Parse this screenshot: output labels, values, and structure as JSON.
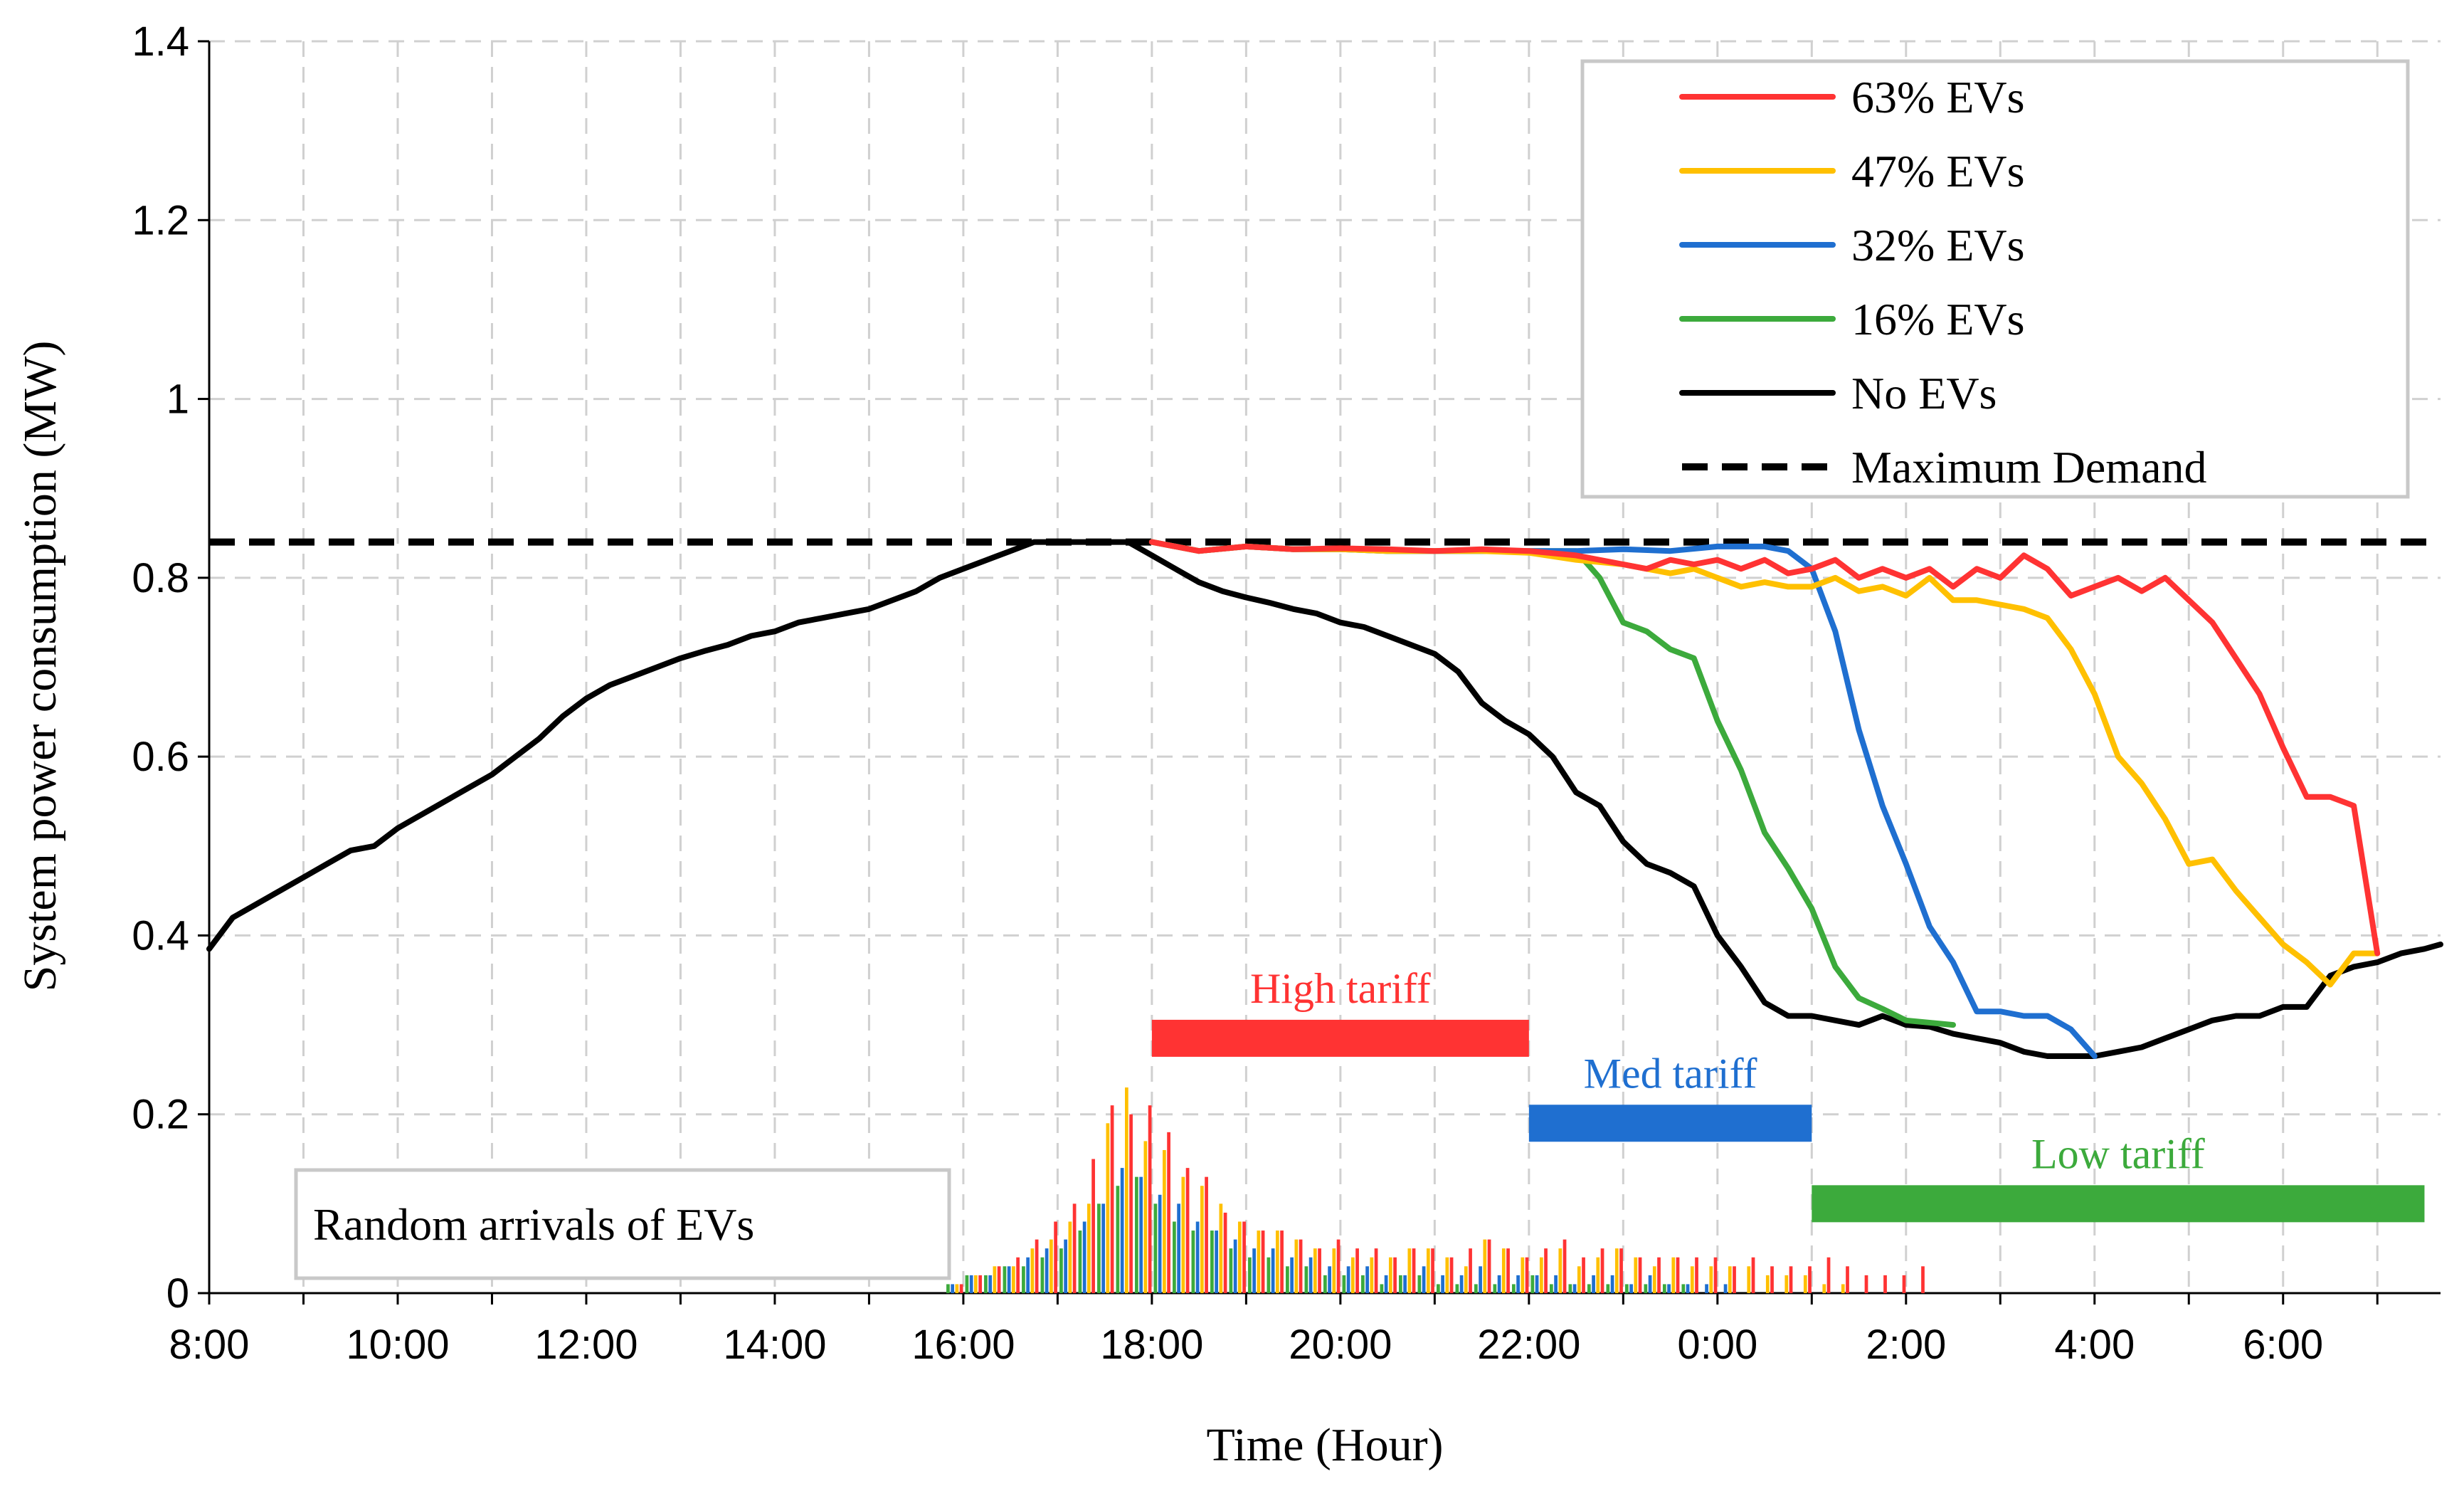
{
  "chart_data": {
    "type": "line",
    "title": "",
    "xlabel": "Time (Hour)",
    "ylabel": "System power consumption  (MW)",
    "xlim": [
      8,
      31.67
    ],
    "ylim": [
      0,
      1.4
    ],
    "x_ticks": [
      8,
      10,
      12,
      14,
      16,
      18,
      20,
      22,
      24,
      26,
      28,
      30
    ],
    "x_tick_labels": [
      "8:00",
      "10:00",
      "12:00",
      "14:00",
      "16:00",
      "18:00",
      "20:00",
      "22:00",
      "0:00",
      "2:00",
      "4:00",
      "6:00"
    ],
    "y_ticks": [
      0,
      0.2,
      0.4,
      0.6,
      0.8,
      1,
      1.2,
      1.4
    ],
    "y_tick_labels": [
      "0",
      "0.2",
      "0.4",
      "0.6",
      "0.8",
      "1",
      "1.2",
      "1.4"
    ],
    "grid": true,
    "legend_position": "top-right",
    "series": [
      {
        "name": "63% EVs",
        "color": "#ff3333",
        "x": [
          18,
          18.5,
          19,
          19.5,
          20,
          20.5,
          21,
          21.5,
          22,
          22.5,
          23,
          23.25,
          23.5,
          23.75,
          24,
          24.25,
          24.5,
          24.75,
          25,
          25.25,
          25.5,
          25.75,
          26,
          26.25,
          26.5,
          26.75,
          27,
          27.25,
          27.5,
          27.75,
          28,
          28.25,
          28.5,
          28.75,
          29,
          29.25,
          29.5,
          29.75,
          30,
          30.25,
          30.5,
          30.75,
          31
        ],
        "values": [
          0.84,
          0.83,
          0.835,
          0.832,
          0.833,
          0.832,
          0.83,
          0.832,
          0.83,
          0.825,
          0.815,
          0.81,
          0.82,
          0.815,
          0.82,
          0.81,
          0.82,
          0.805,
          0.81,
          0.82,
          0.8,
          0.81,
          0.8,
          0.81,
          0.79,
          0.81,
          0.8,
          0.825,
          0.81,
          0.78,
          0.79,
          0.8,
          0.785,
          0.8,
          0.775,
          0.75,
          0.71,
          0.67,
          0.61,
          0.555,
          0.555,
          0.545,
          0.38
        ]
      },
      {
        "name": "47% EVs",
        "color": "#ffc000",
        "x": [
          18,
          18.5,
          19,
          19.5,
          20,
          20.5,
          21,
          21.5,
          22,
          22.5,
          23,
          23.5,
          23.75,
          24,
          24.25,
          24.5,
          24.75,
          25,
          25.25,
          25.5,
          25.75,
          26,
          26.25,
          26.5,
          26.75,
          27,
          27.25,
          27.5,
          27.75,
          28,
          28.25,
          28.5,
          28.75,
          29,
          29.25,
          29.5,
          29.75,
          30,
          30.25,
          30.5,
          30.75,
          31
        ],
        "values": [
          0.84,
          0.83,
          0.835,
          0.832,
          0.832,
          0.83,
          0.83,
          0.83,
          0.828,
          0.82,
          0.815,
          0.805,
          0.81,
          0.8,
          0.79,
          0.795,
          0.79,
          0.79,
          0.8,
          0.785,
          0.79,
          0.78,
          0.8,
          0.775,
          0.775,
          0.77,
          0.765,
          0.755,
          0.72,
          0.67,
          0.6,
          0.57,
          0.53,
          0.48,
          0.485,
          0.45,
          0.42,
          0.39,
          0.37,
          0.345,
          0.38,
          0.38
        ]
      },
      {
        "name": "32% EVs",
        "color": "#1f6fd0",
        "x": [
          18,
          18.5,
          19,
          19.5,
          20,
          20.5,
          21,
          21.5,
          22,
          22.5,
          23,
          23.5,
          24,
          24.5,
          24.75,
          25,
          25.25,
          25.5,
          25.75,
          26,
          26.25,
          26.5,
          26.75,
          27,
          27.25,
          27.5,
          27.75,
          28
        ],
        "values": [
          0.84,
          0.83,
          0.835,
          0.832,
          0.832,
          0.83,
          0.83,
          0.83,
          0.83,
          0.83,
          0.832,
          0.83,
          0.835,
          0.835,
          0.83,
          0.81,
          0.74,
          0.63,
          0.545,
          0.48,
          0.41,
          0.37,
          0.315,
          0.315,
          0.31,
          0.31,
          0.295,
          0.265
        ]
      },
      {
        "name": "16% EVs",
        "color": "#3caa3c",
        "x": [
          18,
          18.5,
          19,
          19.5,
          20,
          20.5,
          21,
          21.5,
          22,
          22.5,
          22.75,
          23,
          23.25,
          23.5,
          23.75,
          24,
          24.25,
          24.5,
          24.75,
          25,
          25.25,
          25.5,
          25.75,
          26,
          26.5
        ],
        "values": [
          0.84,
          0.83,
          0.835,
          0.832,
          0.832,
          0.83,
          0.83,
          0.83,
          0.83,
          0.83,
          0.8,
          0.75,
          0.74,
          0.72,
          0.71,
          0.64,
          0.585,
          0.515,
          0.475,
          0.43,
          0.365,
          0.33,
          0.318,
          0.305,
          0.3
        ]
      },
      {
        "name": "No EVs",
        "color": "#000000",
        "x": [
          8,
          8.25,
          8.5,
          8.75,
          9,
          9.25,
          9.5,
          9.75,
          10,
          10.25,
          10.5,
          10.75,
          11,
          11.25,
          11.5,
          11.75,
          12,
          12.25,
          12.5,
          12.75,
          13,
          13.25,
          13.5,
          13.75,
          14,
          14.25,
          14.5,
          14.75,
          15,
          15.25,
          15.5,
          15.75,
          16,
          16.25,
          16.5,
          16.75,
          17,
          17.25,
          17.5,
          17.75,
          18,
          18.25,
          18.5,
          18.75,
          19,
          19.25,
          19.5,
          19.75,
          20,
          20.25,
          20.5,
          20.75,
          21,
          21.25,
          21.5,
          21.75,
          22,
          22.25,
          22.5,
          22.75,
          23,
          23.25,
          23.5,
          23.75,
          24,
          24.25,
          24.5,
          24.75,
          25,
          25.25,
          25.5,
          25.75,
          26,
          26.25,
          26.5,
          26.75,
          27,
          27.25,
          27.5,
          27.75,
          28,
          28.25,
          28.5,
          28.75,
          29,
          29.25,
          29.5,
          29.75,
          30,
          30.25,
          30.5,
          30.75,
          31,
          31.25,
          31.5,
          31.67
        ],
        "values": [
          0.385,
          0.42,
          0.435,
          0.45,
          0.465,
          0.48,
          0.495,
          0.5,
          0.52,
          0.535,
          0.55,
          0.565,
          0.58,
          0.6,
          0.62,
          0.645,
          0.665,
          0.68,
          0.69,
          0.7,
          0.71,
          0.718,
          0.725,
          0.735,
          0.74,
          0.75,
          0.755,
          0.76,
          0.765,
          0.775,
          0.785,
          0.8,
          0.81,
          0.82,
          0.83,
          0.84,
          0.84,
          0.84,
          0.84,
          0.84,
          0.825,
          0.81,
          0.795,
          0.785,
          0.778,
          0.772,
          0.765,
          0.76,
          0.75,
          0.745,
          0.735,
          0.725,
          0.715,
          0.695,
          0.66,
          0.64,
          0.625,
          0.6,
          0.56,
          0.545,
          0.505,
          0.48,
          0.47,
          0.455,
          0.4,
          0.365,
          0.325,
          0.31,
          0.31,
          0.305,
          0.3,
          0.31,
          0.3,
          0.298,
          0.29,
          0.285,
          0.28,
          0.27,
          0.265,
          0.265,
          0.265,
          0.27,
          0.275,
          0.285,
          0.295,
          0.305,
          0.31,
          0.31,
          0.32,
          0.32,
          0.355,
          0.365,
          0.37,
          0.38,
          0.385,
          0.39
        ]
      },
      {
        "name": "Maximum Demand",
        "color": "#000000",
        "style": "dashed",
        "x": [
          8,
          31.67
        ],
        "values": [
          0.84,
          0.84
        ]
      }
    ],
    "tariffs": [
      {
        "label": "High tariff",
        "start": 18,
        "end": 22,
        "level": 0.285,
        "color": "#ff3333"
      },
      {
        "label": "Med tariff",
        "start": 22,
        "end": 25,
        "level": 0.19,
        "color": "#1f6fd0"
      },
      {
        "label": "Low tariff",
        "start": 25,
        "end": 31.5,
        "level": 0.1,
        "color": "#3caa3c"
      }
    ],
    "arrivals": {
      "label": "Random arrivals of EVs",
      "colors": [
        "#3caa3c",
        "#1f6fd0",
        "#ffc000",
        "#ff3333"
      ],
      "times": [
        15.9,
        16.1,
        16.3,
        16.5,
        16.7,
        16.9,
        17.1,
        17.3,
        17.5,
        17.7,
        17.9,
        18.1,
        18.3,
        18.5,
        18.7,
        18.9,
        19.1,
        19.3,
        19.5,
        19.7,
        19.9,
        20.1,
        20.3,
        20.5,
        20.7,
        20.9,
        21.1,
        21.3,
        21.5,
        21.7,
        21.9,
        22.1,
        22.3,
        22.5,
        22.7,
        22.9,
        23.1,
        23.3,
        23.5,
        23.7,
        23.9,
        24.1,
        24.3,
        24.5,
        24.7,
        24.9,
        25.1,
        25.3,
        25.5,
        25.7,
        25.9,
        26.1
      ],
      "values": [
        [
          0.01,
          0.02,
          0.02,
          0.03,
          0.03,
          0.04,
          0.05,
          0.07,
          0.1,
          0.12,
          0.13,
          0.1,
          0.08,
          0.07,
          0.07,
          0.05,
          0.04,
          0.04,
          0.03,
          0.03,
          0.02,
          0.02,
          0.02,
          0.01,
          0.02,
          0.02,
          0.01,
          0.01,
          0.01,
          0.01,
          0.01,
          0.02,
          0.01,
          0.01,
          0.01,
          0.01,
          0.01,
          0.01,
          0.01,
          0.01,
          0,
          0,
          0,
          0,
          0,
          0,
          0,
          0,
          0,
          0,
          0,
          0
        ],
        [
          0.01,
          0.02,
          0.02,
          0.03,
          0.04,
          0.05,
          0.06,
          0.08,
          0.1,
          0.14,
          0.13,
          0.11,
          0.1,
          0.08,
          0.07,
          0.06,
          0.05,
          0.05,
          0.04,
          0.04,
          0.03,
          0.03,
          0.03,
          0.02,
          0.02,
          0.03,
          0.02,
          0.02,
          0.03,
          0.02,
          0.02,
          0.02,
          0.02,
          0.01,
          0.02,
          0.02,
          0.01,
          0.02,
          0.01,
          0.01,
          0.01,
          0.01,
          0,
          0,
          0,
          0,
          0,
          0,
          0,
          0,
          0,
          0
        ],
        [
          0.01,
          0.02,
          0.03,
          0.03,
          0.05,
          0.06,
          0.08,
          0.1,
          0.19,
          0.23,
          0.17,
          0.16,
          0.13,
          0.12,
          0.1,
          0.08,
          0.07,
          0.07,
          0.06,
          0.05,
          0.05,
          0.04,
          0.04,
          0.04,
          0.05,
          0.05,
          0.04,
          0.03,
          0.06,
          0.05,
          0.04,
          0.04,
          0.05,
          0.03,
          0.04,
          0.05,
          0.04,
          0.03,
          0.04,
          0.03,
          0.03,
          0.03,
          0.03,
          0.02,
          0.02,
          0.02,
          0.01,
          0.01,
          0,
          0,
          0,
          0
        ],
        [
          0.01,
          0.02,
          0.03,
          0.04,
          0.06,
          0.08,
          0.1,
          0.15,
          0.21,
          0.2,
          0.21,
          0.18,
          0.14,
          0.13,
          0.09,
          0.08,
          0.07,
          0.07,
          0.06,
          0.05,
          0.06,
          0.05,
          0.05,
          0.04,
          0.05,
          0.05,
          0.04,
          0.05,
          0.06,
          0.05,
          0.04,
          0.05,
          0.06,
          0.04,
          0.05,
          0.05,
          0.04,
          0.04,
          0.04,
          0.04,
          0.04,
          0.03,
          0.04,
          0.03,
          0.03,
          0.03,
          0.04,
          0.03,
          0.02,
          0.02,
          0.02,
          0.03
        ]
      ]
    }
  }
}
